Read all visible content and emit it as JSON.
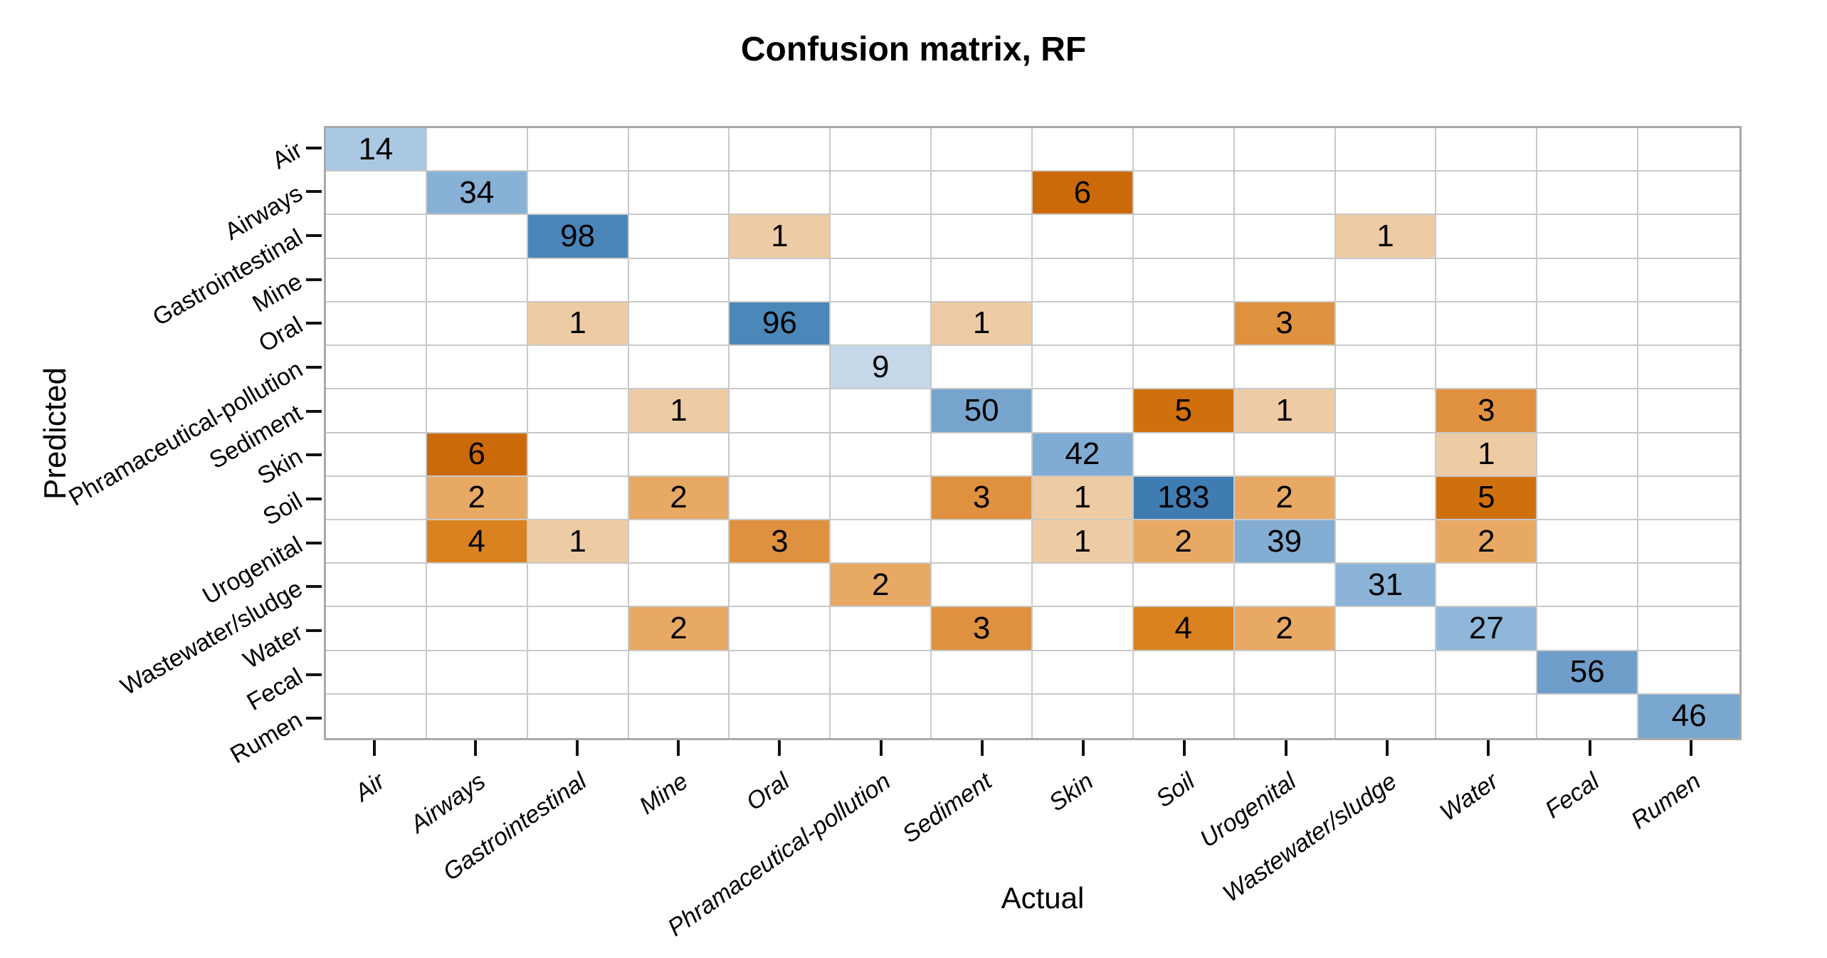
{
  "chart_data": {
    "type": "heatmap",
    "title": "Confusion matrix, RF",
    "xlabel": "Actual",
    "ylabel": "Predicted",
    "x_categories": [
      "Air",
      "Airways",
      "Gastrointestinal",
      "Mine",
      "Oral",
      "Phramaceutical-pollution",
      "Sediment",
      "Skin",
      "Soil",
      "Urogenital",
      "Wastewater/sludge",
      "Water",
      "Fecal",
      "Rumen"
    ],
    "y_categories": [
      "Air",
      "Airways",
      "Gastrointestinal",
      "Mine",
      "Oral",
      "Phramaceutical-pollution",
      "Sediment",
      "Skin",
      "Soil",
      "Urogenital",
      "Wastewater/sludge",
      "Water",
      "Fecal",
      "Rumen"
    ],
    "grid": "on",
    "legend": "none",
    "cells": [
      {
        "row": "Air",
        "col": "Air",
        "value": 14,
        "color": "#aac8e1"
      },
      {
        "row": "Airways",
        "col": "Airways",
        "value": 34,
        "color": "#87b1d5"
      },
      {
        "row": "Airways",
        "col": "Skin",
        "value": 6,
        "color": "#cc6a0a"
      },
      {
        "row": "Gastrointestinal",
        "col": "Gastrointestinal",
        "value": 98,
        "color": "#4985b8"
      },
      {
        "row": "Gastrointestinal",
        "col": "Oral",
        "value": 1,
        "color": "#edcba4"
      },
      {
        "row": "Gastrointestinal",
        "col": "Wastewater/sludge",
        "value": 1,
        "color": "#edcba4"
      },
      {
        "row": "Oral",
        "col": "Gastrointestinal",
        "value": 1,
        "color": "#edcba4"
      },
      {
        "row": "Oral",
        "col": "Oral",
        "value": 96,
        "color": "#4b87b9"
      },
      {
        "row": "Oral",
        "col": "Sediment",
        "value": 1,
        "color": "#edcba4"
      },
      {
        "row": "Oral",
        "col": "Urogenital",
        "value": 3,
        "color": "#e09140"
      },
      {
        "row": "Phramaceutical-pollution",
        "col": "Phramaceutical-pollution",
        "value": 9,
        "color": "#c5d8ea"
      },
      {
        "row": "Sediment",
        "col": "Mine",
        "value": 1,
        "color": "#edcba4"
      },
      {
        "row": "Sediment",
        "col": "Sediment",
        "value": 50,
        "color": "#77a4cd"
      },
      {
        "row": "Sediment",
        "col": "Soil",
        "value": 5,
        "color": "#d0700d"
      },
      {
        "row": "Sediment",
        "col": "Urogenital",
        "value": 1,
        "color": "#edcba4"
      },
      {
        "row": "Sediment",
        "col": "Water",
        "value": 3,
        "color": "#e09140"
      },
      {
        "row": "Skin",
        "col": "Airways",
        "value": 6,
        "color": "#cc6a0a"
      },
      {
        "row": "Skin",
        "col": "Skin",
        "value": 42,
        "color": "#80abd2"
      },
      {
        "row": "Skin",
        "col": "Water",
        "value": 1,
        "color": "#edcba4"
      },
      {
        "row": "Soil",
        "col": "Airways",
        "value": 2,
        "color": "#e8a964"
      },
      {
        "row": "Soil",
        "col": "Mine",
        "value": 2,
        "color": "#e8a964"
      },
      {
        "row": "Soil",
        "col": "Sediment",
        "value": 3,
        "color": "#e09140"
      },
      {
        "row": "Soil",
        "col": "Skin",
        "value": 1,
        "color": "#edcba4"
      },
      {
        "row": "Soil",
        "col": "Soil",
        "value": 183,
        "color": "#3e7cb1"
      },
      {
        "row": "Soil",
        "col": "Urogenital",
        "value": 2,
        "color": "#e8a964"
      },
      {
        "row": "Soil",
        "col": "Water",
        "value": 5,
        "color": "#d0700d"
      },
      {
        "row": "Urogenital",
        "col": "Airways",
        "value": 4,
        "color": "#d9821f"
      },
      {
        "row": "Urogenital",
        "col": "Gastrointestinal",
        "value": 1,
        "color": "#edcba4"
      },
      {
        "row": "Urogenital",
        "col": "Oral",
        "value": 3,
        "color": "#e09140"
      },
      {
        "row": "Urogenital",
        "col": "Skin",
        "value": 1,
        "color": "#edcba4"
      },
      {
        "row": "Urogenital",
        "col": "Soil",
        "value": 2,
        "color": "#e8a964"
      },
      {
        "row": "Urogenital",
        "col": "Urogenital",
        "value": 39,
        "color": "#83add3"
      },
      {
        "row": "Urogenital",
        "col": "Water",
        "value": 2,
        "color": "#e8a964"
      },
      {
        "row": "Wastewater/sludge",
        "col": "Phramaceutical-pollution",
        "value": 2,
        "color": "#e8a964"
      },
      {
        "row": "Wastewater/sludge",
        "col": "Wastewater/sludge",
        "value": 31,
        "color": "#8ab3d7"
      },
      {
        "row": "Water",
        "col": "Mine",
        "value": 2,
        "color": "#e8a964"
      },
      {
        "row": "Water",
        "col": "Sediment",
        "value": 3,
        "color": "#e09140"
      },
      {
        "row": "Water",
        "col": "Soil",
        "value": 4,
        "color": "#d9821f"
      },
      {
        "row": "Water",
        "col": "Urogenital",
        "value": 2,
        "color": "#e8a964"
      },
      {
        "row": "Water",
        "col": "Water",
        "value": 27,
        "color": "#8fb7d9"
      },
      {
        "row": "Fecal",
        "col": "Fecal",
        "value": 56,
        "color": "#6f9eca"
      },
      {
        "row": "Rumen",
        "col": "Rumen",
        "value": 46,
        "color": "#79a7cf"
      }
    ],
    "colors": {
      "diagonal_low": "#c5d8ea",
      "diagonal_high": "#3e7cb1",
      "offdiagonal_low": "#edcba4",
      "offdiagonal_high": "#cc6a0a",
      "gridline": "#c9c9c9",
      "frame": "#a9a9a9",
      "tick": "#111111",
      "text": "#000000"
    }
  }
}
